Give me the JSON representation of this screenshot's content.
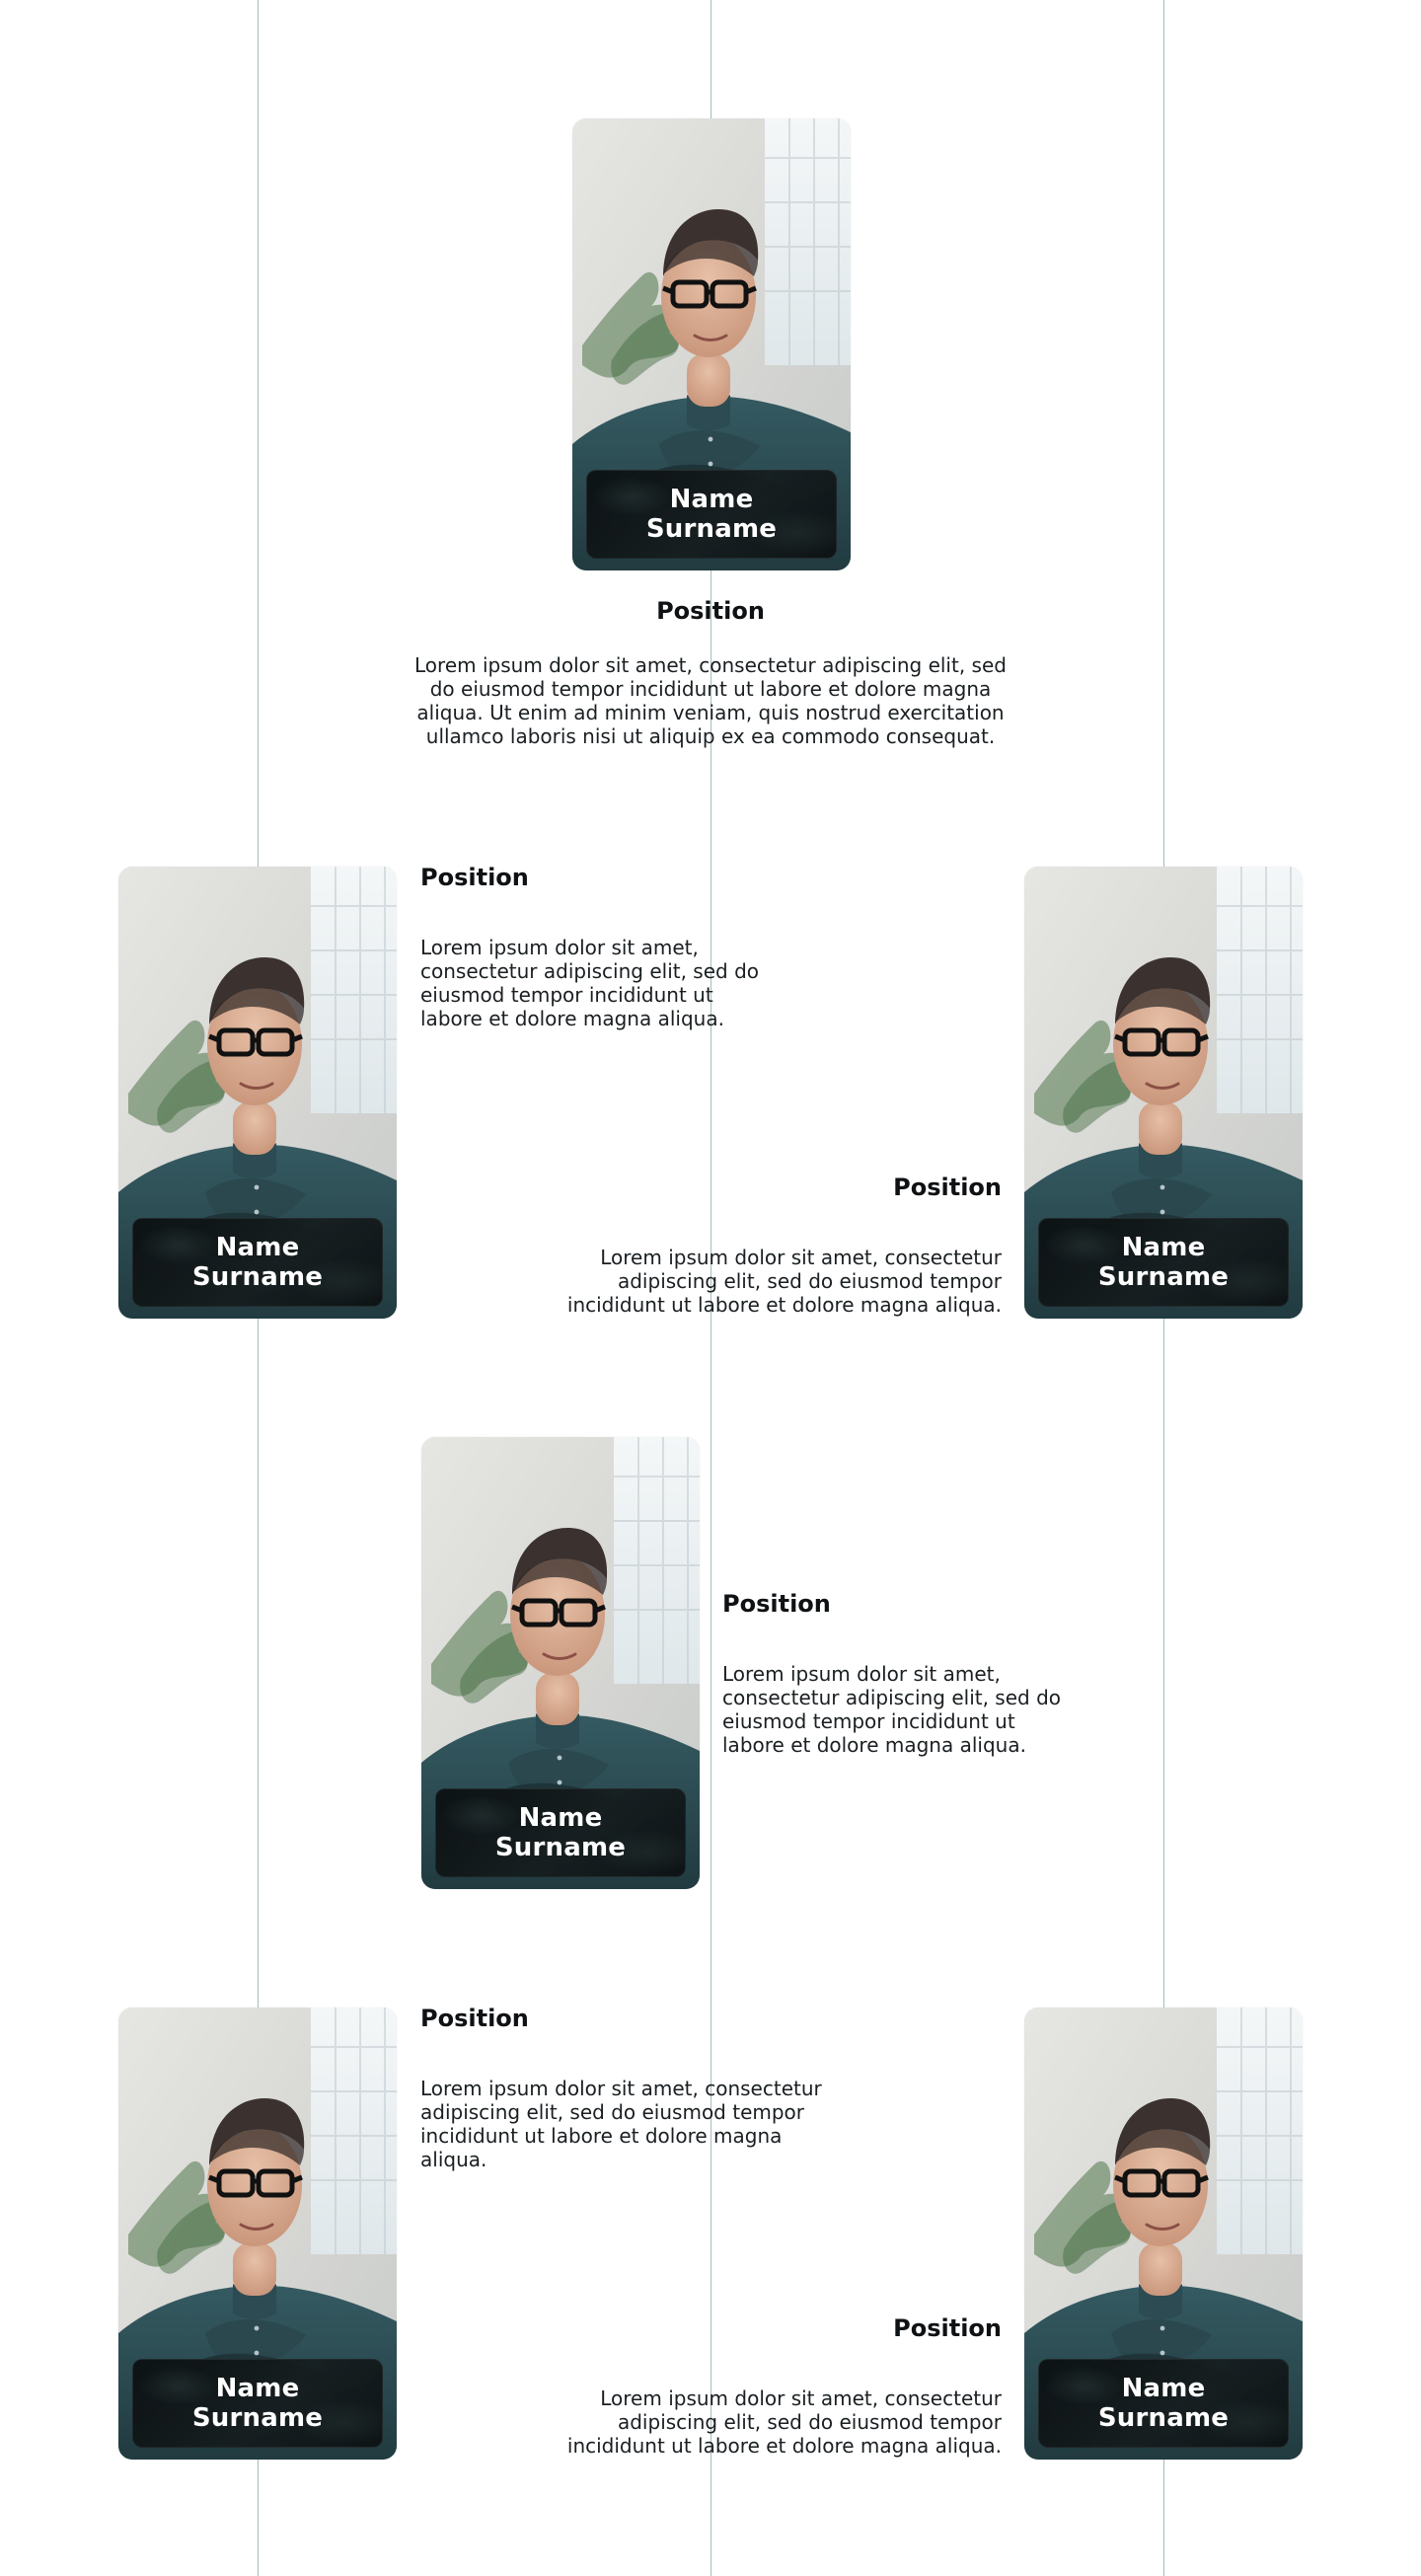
{
  "members": [
    {
      "name": "Name\nSurname",
      "position": "Position",
      "description": "Lorem ipsum dolor sit amet, consectetur adipiscing elit, sed do eiusmod tempor incididunt ut labore et dolore magna aliqua. Ut enim ad minim veniam, quis nostrud exercitation ullamco laboris nisi ut aliquip ex ea commodo consequat."
    },
    {
      "name": "Name\nSurname",
      "position": "Position",
      "description": "Lorem ipsum dolor sit amet, consectetur adipiscing elit, sed do eiusmod tempor incididunt ut labore et dolore magna aliqua."
    },
    {
      "name": "Name\nSurname",
      "position": "Position",
      "description": "Lorem ipsum dolor sit amet, consectetur adipiscing elit, sed do eiusmod tempor incididunt ut labore et dolore magna aliqua."
    },
    {
      "name": "Name\nSurname",
      "position": "Position",
      "description": "Lorem ipsum dolor sit amet, consectetur adipiscing elit, sed do eiusmod tempor incididunt ut labore et dolore magna aliqua."
    },
    {
      "name": "Name\nSurname",
      "position": "Position",
      "description": "Lorem ipsum dolor sit amet, consectetur adipiscing elit, sed do eiusmod tempor incididunt ut labore et dolore magna aliqua."
    },
    {
      "name": "Name\nSurname",
      "position": "Position",
      "description": "Lorem ipsum dolor sit amet, consectetur adipiscing elit, sed do eiusmod tempor incididunt ut labore et dolore magna aliqua."
    }
  ],
  "colors": {
    "background": "#ffffff",
    "guide_lines": "#a9bcbc",
    "text_primary": "#0f1214",
    "name_plate_bg": "#111617",
    "name_text": "#ffffff",
    "shirt": "#2c4b52"
  },
  "icons": {
    "portrait": "portrait-photo-icon"
  }
}
